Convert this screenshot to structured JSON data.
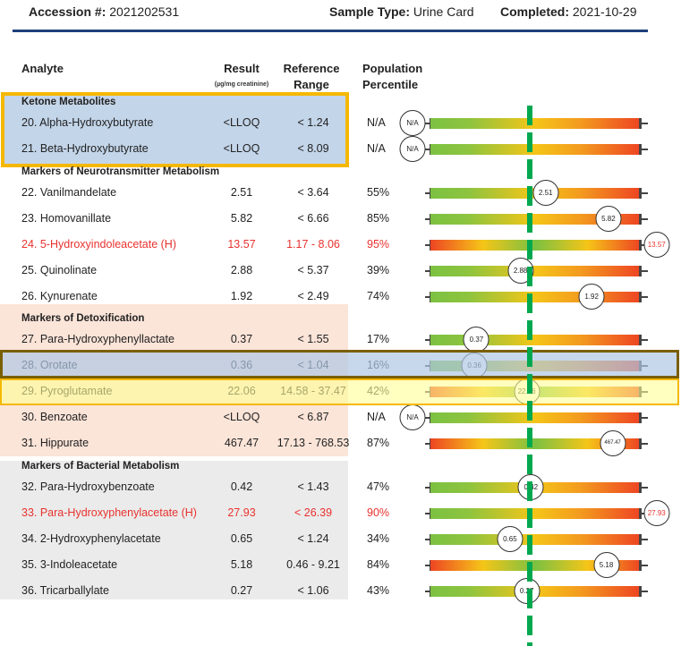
{
  "header": {
    "accession_label": "Accession #:",
    "accession": "2021202531",
    "sample_label": "Sample Type:",
    "sample": "Urine Card",
    "completed_label": "Completed:",
    "completed": "2021-10-29"
  },
  "columns": {
    "analyte": "Analyte",
    "result": "Result",
    "result_unit": "(µg/mg creatinine)",
    "reference_1": "Reference",
    "reference_2": "Range",
    "percentile_1": "Population",
    "percentile_2": "Percentile"
  },
  "colors": {
    "rule": "#1f3f7a",
    "high": "#e8322e",
    "marker_line": "#00a84f"
  },
  "sections": [
    {
      "title": "Ketone Metabolites",
      "rows": [
        {
          "name": "20. Alpha-Hydroxybutyrate",
          "result": "<LLOQ",
          "ref": "< 1.24",
          "pct": "N/A",
          "p": null,
          "bar": "low",
          "high": false,
          "marker": "N/A"
        },
        {
          "name": "21. Beta-Hydroxybutyrate",
          "result": "<LLOQ",
          "ref": "< 8.09",
          "pct": "N/A",
          "p": null,
          "bar": "low",
          "high": false,
          "marker": "N/A"
        }
      ]
    },
    {
      "title": "Markers of Neurotransmitter Metabolism",
      "rows": [
        {
          "name": "22. Vanilmandelate",
          "result": "2.51",
          "ref": "< 3.64",
          "pct": "55%",
          "p": 55,
          "bar": "low",
          "high": false,
          "marker": "2.51"
        },
        {
          "name": "23. Homovanillate",
          "result": "5.82",
          "ref": "< 6.66",
          "pct": "85%",
          "p": 85,
          "bar": "low",
          "high": false,
          "marker": "5.82"
        },
        {
          "name": "24. 5-Hydroxyindoleacetate (H)",
          "result": "13.57",
          "ref": "1.17 - 8.06",
          "pct": "95%",
          "p": 108,
          "bar": "range",
          "high": true,
          "marker": "13.57"
        },
        {
          "name": "25. Quinolinate",
          "result": "2.88",
          "ref": "< 5.37",
          "pct": "39%",
          "p": 43,
          "bar": "low",
          "high": false,
          "marker": "2.88"
        },
        {
          "name": "26. Kynurenate",
          "result": "1.92",
          "ref": "< 2.49",
          "pct": "74%",
          "p": 77,
          "bar": "low",
          "high": false,
          "marker": "1.92"
        }
      ]
    },
    {
      "title": "Markers of Detoxification",
      "rows": [
        {
          "name": "27. Para-Hydroxyphenyllactate",
          "result": "0.37",
          "ref": "< 1.55",
          "pct": "17%",
          "p": 22,
          "bar": "low",
          "high": false,
          "marker": "0.37"
        },
        {
          "name": "28. Orotate",
          "result": "0.36",
          "ref": "< 1.04",
          "pct": "16%",
          "p": 21,
          "bar": "low",
          "high": false,
          "marker": "0.36"
        },
        {
          "name": "29. Pyroglutamate",
          "result": "22.06",
          "ref": "14.58 - 37.47",
          "pct": "42%",
          "p": 46,
          "bar": "range",
          "high": false,
          "marker": "22.06"
        },
        {
          "name": "30. Benzoate",
          "result": "<LLOQ",
          "ref": "< 6.87",
          "pct": "N/A",
          "p": null,
          "bar": "low",
          "high": false,
          "marker": "N/A"
        },
        {
          "name": "31. Hippurate",
          "result": "467.47",
          "ref": "17.13 - 768.53",
          "pct": "87%",
          "p": 87,
          "bar": "range",
          "high": false,
          "marker": "467.47"
        }
      ]
    },
    {
      "title": "Markers of Bacterial Metabolism",
      "rows": [
        {
          "name": "32. Para-Hydroxybenzoate",
          "result": "0.42",
          "ref": "< 1.43",
          "pct": "47%",
          "p": 48,
          "bar": "low",
          "high": false,
          "marker": "0.42"
        },
        {
          "name": "33. Para-Hydroxyphenylacetate (H)",
          "result": "27.93",
          "ref": "< 26.39",
          "pct": "90%",
          "p": 108,
          "bar": "low",
          "high": true,
          "marker": "27.93"
        },
        {
          "name": "34. 2-Hydroxyphenylacetate",
          "result": "0.65",
          "ref": "< 1.24",
          "pct": "34%",
          "p": 38,
          "bar": "low",
          "high": false,
          "marker": "0.65"
        },
        {
          "name": "35. 3-Indoleacetate",
          "result": "5.18",
          "ref": "0.46 - 9.21",
          "pct": "84%",
          "p": 84,
          "bar": "range",
          "high": false,
          "marker": "5.18"
        },
        {
          "name": "36. Tricarballylate",
          "result": "0.27",
          "ref": "< 1.06",
          "pct": "43%",
          "p": 46,
          "bar": "low",
          "high": false,
          "marker": "0.27"
        }
      ]
    }
  ]
}
